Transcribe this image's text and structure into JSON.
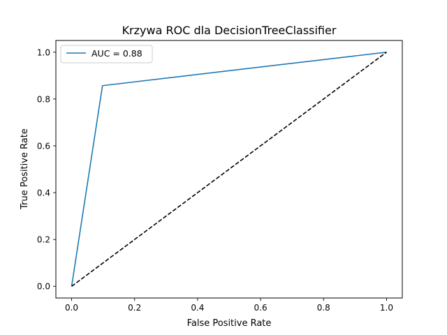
{
  "chart_data": {
    "type": "line",
    "title": "Krzywa ROC dla DecisionTreeClassifier",
    "xlabel": "False Positive Rate",
    "ylabel": "True Positive Rate",
    "xlim": [
      -0.05,
      1.05
    ],
    "ylim": [
      -0.05,
      1.05
    ],
    "xticks": [
      0.0,
      0.2,
      0.4,
      0.6,
      0.8,
      1.0
    ],
    "yticks": [
      0.0,
      0.2,
      0.4,
      0.6,
      0.8,
      1.0
    ],
    "xtick_labels": [
      "0.0",
      "0.2",
      "0.4",
      "0.6",
      "0.8",
      "1.0"
    ],
    "ytick_labels": [
      "0.0",
      "0.2",
      "0.4",
      "0.6",
      "0.8",
      "1.0"
    ],
    "grid": false,
    "legend_position": "top-left",
    "series": [
      {
        "name": "AUC = 0.88",
        "color": "#1f77b4",
        "style": "solid",
        "x": [
          0.0,
          0.098,
          1.0
        ],
        "y": [
          0.0,
          0.857,
          1.0
        ]
      },
      {
        "color": "#000000",
        "style": "dashed",
        "x": [
          0.0,
          1.0
        ],
        "y": [
          0.0,
          1.0
        ]
      }
    ]
  }
}
